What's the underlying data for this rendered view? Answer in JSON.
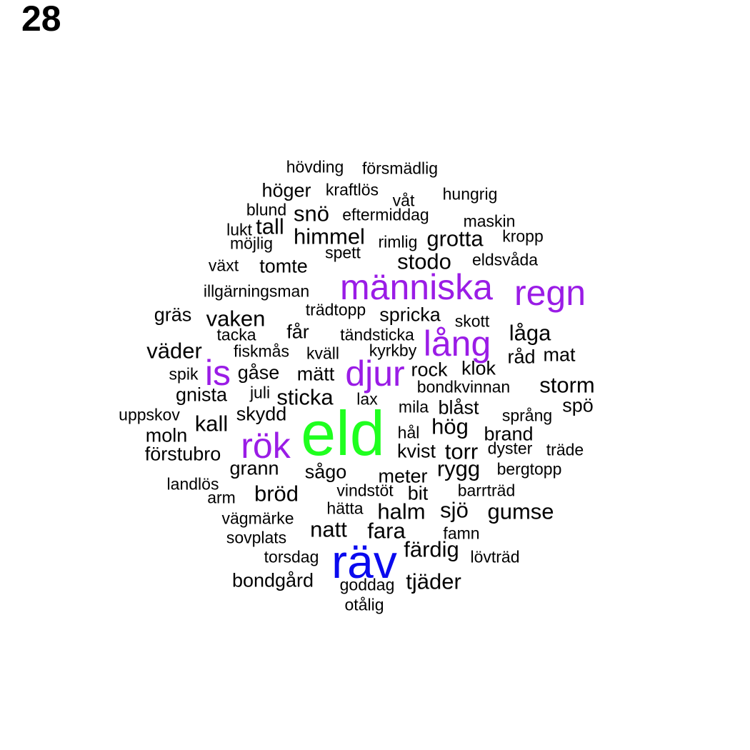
{
  "panel_number": "28",
  "colors": {
    "default": "#000000",
    "purple": "#9a1ce6",
    "blue": "#0a0aee",
    "green": "#1fff1f"
  },
  "words": [
    {
      "text": "eld",
      "tier": 6,
      "color": "green"
    },
    {
      "text": "räv",
      "tier": 5,
      "color": "blue"
    },
    {
      "text": "människa",
      "tier": 4,
      "color": "purple"
    },
    {
      "text": "regn",
      "tier": 4,
      "color": "purple"
    },
    {
      "text": "lång",
      "tier": 4,
      "color": "purple"
    },
    {
      "text": "djur",
      "tier": 4,
      "color": "purple"
    },
    {
      "text": "is",
      "tier": 4,
      "color": "purple"
    },
    {
      "text": "rök",
      "tier": 4,
      "color": "purple"
    },
    {
      "text": "natt",
      "tier": 3
    },
    {
      "text": "bröd",
      "tier": 3
    },
    {
      "text": "sjö",
      "tier": 3
    },
    {
      "text": "hög",
      "tier": 3
    },
    {
      "text": "storm",
      "tier": 3
    },
    {
      "text": "fara",
      "tier": 3
    },
    {
      "text": "vaken",
      "tier": 3
    },
    {
      "text": "sticka",
      "tier": 3
    },
    {
      "text": "kall",
      "tier": 3
    },
    {
      "text": "låga",
      "tier": 3
    },
    {
      "text": "väder",
      "tier": 3
    },
    {
      "text": "himmel",
      "tier": 3
    },
    {
      "text": "stodo",
      "tier": 3
    },
    {
      "text": "grotta",
      "tier": 3
    },
    {
      "text": "torr",
      "tier": 3
    },
    {
      "text": "rygg",
      "tier": 3
    },
    {
      "text": "gumse",
      "tier": 3
    },
    {
      "text": "halm",
      "tier": 3
    },
    {
      "text": "färdig",
      "tier": 3
    },
    {
      "text": "tjäder",
      "tier": 3
    },
    {
      "text": "snö",
      "tier": 3
    },
    {
      "text": "tall",
      "tier": 3
    },
    {
      "text": "tomte",
      "tier": 2
    },
    {
      "text": "gräs",
      "tier": 2
    },
    {
      "text": "spricka",
      "tier": 2
    },
    {
      "text": "får",
      "tier": 2
    },
    {
      "text": "råd",
      "tier": 2
    },
    {
      "text": "mat",
      "tier": 2
    },
    {
      "text": "rock",
      "tier": 2
    },
    {
      "text": "klok",
      "tier": 2
    },
    {
      "text": "blåst",
      "tier": 2
    },
    {
      "text": "brand",
      "tier": 2
    },
    {
      "text": "kvist",
      "tier": 2
    },
    {
      "text": "sågo",
      "tier": 2
    },
    {
      "text": "grann",
      "tier": 2
    },
    {
      "text": "meter",
      "tier": 2
    },
    {
      "text": "bit",
      "tier": 2
    },
    {
      "text": "höger",
      "tier": 2
    },
    {
      "text": "gåse",
      "tier": 2
    },
    {
      "text": "mätt",
      "tier": 2
    },
    {
      "text": "gnista",
      "tier": 2
    },
    {
      "text": "skydd",
      "tier": 2
    },
    {
      "text": "moln",
      "tier": 2
    },
    {
      "text": "förstubro",
      "tier": 2
    },
    {
      "text": "bondgård",
      "tier": 2
    },
    {
      "text": "spö",
      "tier": 2
    },
    {
      "text": "hövding",
      "tier": 1
    },
    {
      "text": "försmädlig",
      "tier": 1
    },
    {
      "text": "kraftlös",
      "tier": 1
    },
    {
      "text": "våt",
      "tier": 1
    },
    {
      "text": "hungrig",
      "tier": 1
    },
    {
      "text": "blund",
      "tier": 1
    },
    {
      "text": "eftermiddag",
      "tier": 1
    },
    {
      "text": "maskin",
      "tier": 1
    },
    {
      "text": "lukt",
      "tier": 1
    },
    {
      "text": "möjlig",
      "tier": 1
    },
    {
      "text": "rimlig",
      "tier": 1
    },
    {
      "text": "kropp",
      "tier": 1
    },
    {
      "text": "spett",
      "tier": 1
    },
    {
      "text": "växt",
      "tier": 1
    },
    {
      "text": "eldsvåda",
      "tier": 1
    },
    {
      "text": "illgärningsman",
      "tier": 1
    },
    {
      "text": "trädtopp",
      "tier": 1
    },
    {
      "text": "skott",
      "tier": 1
    },
    {
      "text": "tacka",
      "tier": 1
    },
    {
      "text": "tändsticka",
      "tier": 1
    },
    {
      "text": "fiskmås",
      "tier": 1
    },
    {
      "text": "kväll",
      "tier": 1
    },
    {
      "text": "kyrkby",
      "tier": 1
    },
    {
      "text": "spik",
      "tier": 1
    },
    {
      "text": "juli",
      "tier": 1
    },
    {
      "text": "bondkvinnan",
      "tier": 1
    },
    {
      "text": "lax",
      "tier": 1
    },
    {
      "text": "mila",
      "tier": 1
    },
    {
      "text": "uppskov",
      "tier": 1
    },
    {
      "text": "språng",
      "tier": 1
    },
    {
      "text": "hål",
      "tier": 1
    },
    {
      "text": "dyster",
      "tier": 1
    },
    {
      "text": "träde",
      "tier": 1
    },
    {
      "text": "bergtopp",
      "tier": 1
    },
    {
      "text": "landlös",
      "tier": 1
    },
    {
      "text": "vindstöt",
      "tier": 1
    },
    {
      "text": "barrträd",
      "tier": 1
    },
    {
      "text": "arm",
      "tier": 1
    },
    {
      "text": "hätta",
      "tier": 1
    },
    {
      "text": "vägmärke",
      "tier": 1
    },
    {
      "text": "famn",
      "tier": 1
    },
    {
      "text": "sovplats",
      "tier": 1
    },
    {
      "text": "torsdag",
      "tier": 1
    },
    {
      "text": "lövträd",
      "tier": 1
    },
    {
      "text": "goddag",
      "tier": 1
    },
    {
      "text": "otålig",
      "tier": 1
    }
  ]
}
